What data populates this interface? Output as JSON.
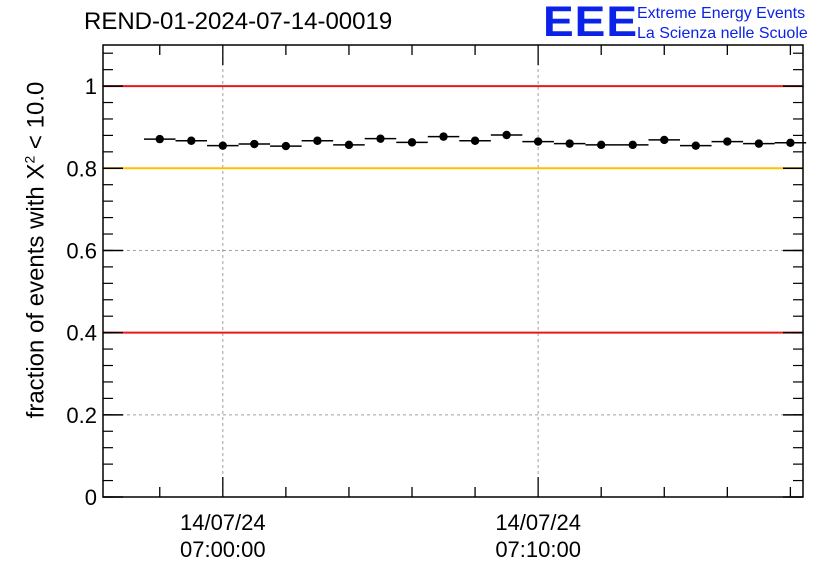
{
  "header": {
    "title": "REND-01-2024-07-14-00019",
    "logo_letters": "EEE",
    "logo_line1": "Extreme Energy Events",
    "logo_line2": "La Scienza nelle Scuole"
  },
  "chart_data": {
    "type": "scatter",
    "title": "REND-01-2024-07-14-00019",
    "ylabel_prefix": "fraction of events with ",
    "ylabel_symbol": "X",
    "ylabel_sup": "2",
    "ylabel_suffix": " < 10.0",
    "xlabel": "",
    "ylim": [
      0,
      1.1
    ],
    "xlim_minutes": [
      -3.8,
      18.4
    ],
    "y_ticks": [
      {
        "value": 0,
        "label": "0"
      },
      {
        "value": 0.2,
        "label": "0.2"
      },
      {
        "value": 0.4,
        "label": "0.4"
      },
      {
        "value": 0.6,
        "label": "0.6"
      },
      {
        "value": 0.8,
        "label": "0.8"
      },
      {
        "value": 1,
        "label": "1"
      }
    ],
    "x_ticks": [
      {
        "minute": 0,
        "date": "14/07/24",
        "time": "07:00:00"
      },
      {
        "minute": 10,
        "date": "14/07/24",
        "time": "07:10:00"
      }
    ],
    "grid": true,
    "reference_lines": [
      {
        "y": 1.0,
        "color": "#e8191c"
      },
      {
        "y": 0.8,
        "color": "#ffc000"
      },
      {
        "y": 0.4,
        "color": "#e8191c"
      }
    ],
    "bin_width_minutes": 1,
    "series": [
      {
        "x_minutes": [
          -2,
          -1,
          0,
          1,
          2,
          3,
          4,
          5,
          6,
          7,
          8,
          9,
          10,
          11,
          12,
          13,
          14,
          15,
          16,
          17,
          18
        ],
        "values": [
          0.871,
          0.867,
          0.855,
          0.859,
          0.854,
          0.867,
          0.857,
          0.872,
          0.863,
          0.877,
          0.867,
          0.881,
          0.865,
          0.86,
          0.857,
          0.857,
          0.869,
          0.855,
          0.865,
          0.86,
          0.862
        ],
        "color": "#000000"
      }
    ]
  }
}
